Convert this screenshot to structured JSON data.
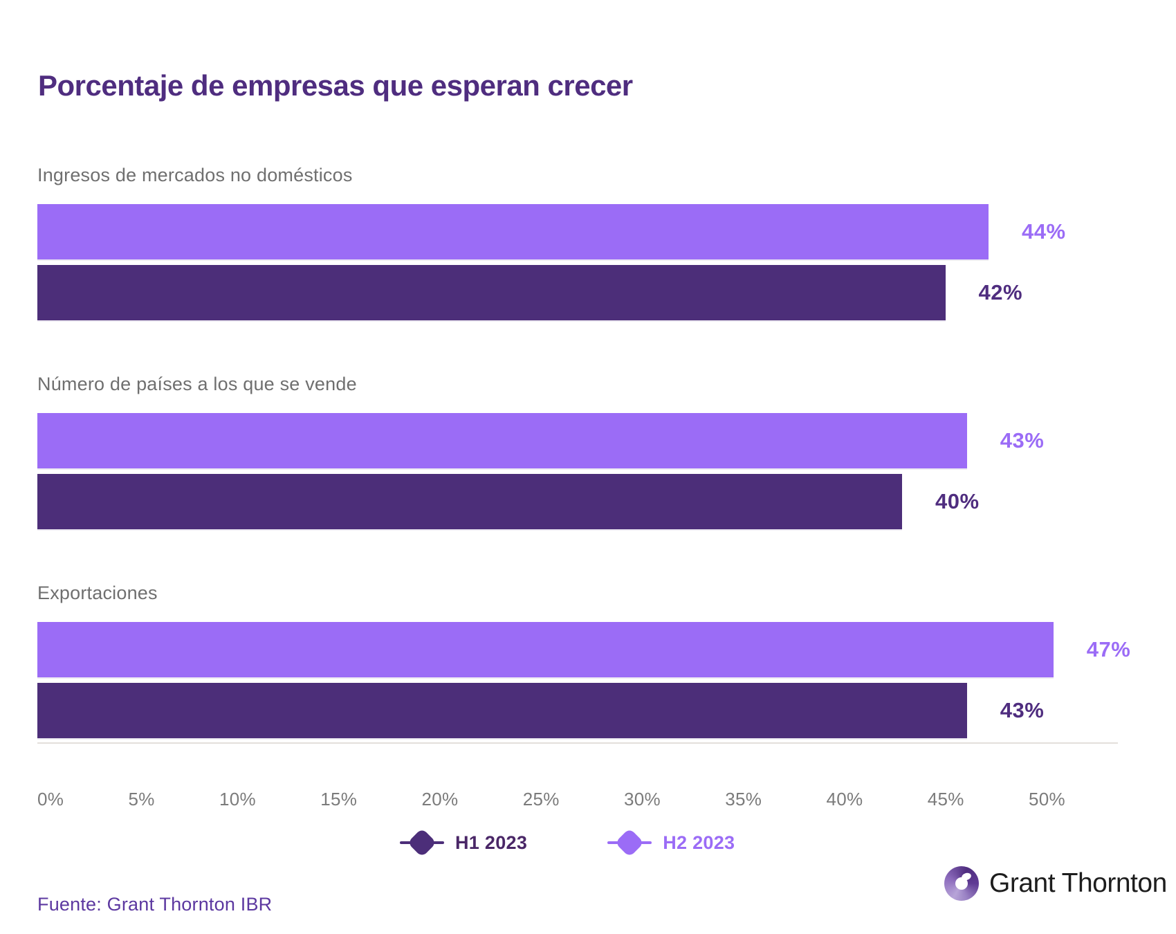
{
  "title": "Porcentaje de empresas que esperan crecer",
  "source": "Fuente: Grant Thornton IBR",
  "logo": {
    "brand": "Grant Thornton"
  },
  "colors": {
    "title": "#4F2D7F",
    "h1_bar": "#4C2E79",
    "h2_bar": "#9B6CF6",
    "category_label": "#6F6F6F",
    "axis_tick": "#7B7B7B",
    "axis_line": "#E3DFDB",
    "source": "#5C38A0"
  },
  "legend": [
    {
      "label": "H1 2023",
      "color": "#4C2E79",
      "text_color": "#4A2767"
    },
    {
      "label": "H2 2023",
      "color": "#9B6CF6",
      "text_color": "#9B6CF6"
    }
  ],
  "chart_data": {
    "type": "bar",
    "orientation": "horizontal",
    "title": "Porcentaje de empresas que esperan crecer",
    "categories": [
      "Ingresos de mercados no domésticos",
      "Número de países a los que se vende",
      "Exportaciones"
    ],
    "series": [
      {
        "name": "H2 2023",
        "color": "#9B6CF6",
        "value_color": "#9B6CF6",
        "values": [
          44,
          43,
          47
        ]
      },
      {
        "name": "H1 2023",
        "color": "#4C2E79",
        "value_color": "#4F2D7F",
        "values": [
          42,
          40,
          43
        ]
      }
    ],
    "value_suffix": "%",
    "xlim": [
      0,
      50
    ],
    "x_ticks": [
      "0%",
      "5%",
      "10%",
      "15%",
      "20%",
      "25%",
      "30%",
      "35%",
      "40%",
      "45%",
      "50%"
    ],
    "grid": false,
    "legend_position": "bottom"
  }
}
